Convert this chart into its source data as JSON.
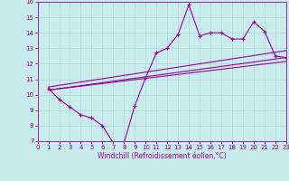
{
  "xlabel": "Windchill (Refroidissement éolien,°C)",
  "bg_color": "#c8ecec",
  "line_color": "#990099",
  "grid_color": "#b0d8d8",
  "xlim": [
    0,
    23
  ],
  "ylim": [
    7,
    16
  ],
  "xticks": [
    0,
    1,
    2,
    3,
    4,
    5,
    6,
    7,
    8,
    9,
    10,
    11,
    12,
    13,
    14,
    15,
    16,
    17,
    18,
    19,
    20,
    21,
    22,
    23
  ],
  "yticks": [
    7,
    8,
    9,
    10,
    11,
    12,
    13,
    14,
    15,
    16
  ],
  "series1_x": [
    1,
    2,
    3,
    4,
    5,
    6,
    7,
    8,
    9,
    10,
    11,
    12,
    13,
    14,
    15,
    16,
    17,
    18,
    19,
    20,
    21,
    22,
    23
  ],
  "series1_y": [
    10.4,
    9.7,
    9.2,
    8.7,
    8.5,
    8.0,
    6.9,
    6.9,
    9.3,
    11.1,
    12.7,
    13.0,
    13.9,
    15.8,
    13.8,
    14.0,
    14.0,
    13.6,
    13.6,
    14.7,
    14.1,
    12.5,
    12.4
  ],
  "series2_x": [
    1,
    23
  ],
  "series2_y": [
    10.3,
    12.4
  ],
  "series3_x": [
    1,
    23
  ],
  "series3_y": [
    10.3,
    12.15
  ],
  "series4_x": [
    1,
    23
  ],
  "series4_y": [
    10.5,
    12.85
  ],
  "tick_fontsize": 5.0,
  "xlabel_fontsize": 5.5
}
